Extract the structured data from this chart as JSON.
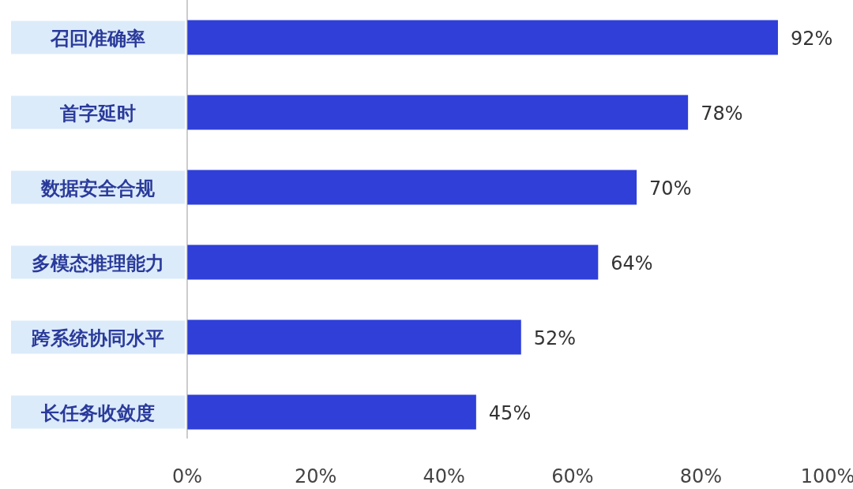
{
  "chart_data": {
    "type": "bar",
    "orientation": "horizontal",
    "categories": [
      "召回准确率",
      "首字延时",
      "数据安全合规",
      "多模态推理能力",
      "跨系统协同水平",
      "长任务收敛度"
    ],
    "values": [
      92,
      78,
      70,
      64,
      52,
      45
    ],
    "value_labels": [
      "92%",
      "78%",
      "70%",
      "64%",
      "52%",
      "45%"
    ],
    "color": "#2f3fd8",
    "xlim": [
      0,
      100
    ],
    "xticks": [
      {
        "value": 0,
        "label": "0%"
      },
      {
        "value": 20,
        "label": "20%"
      },
      {
        "value": 40,
        "label": "40%"
      },
      {
        "value": 60,
        "label": "60%"
      },
      {
        "value": 80,
        "label": "80%"
      },
      {
        "value": 100,
        "label": "100%"
      }
    ],
    "grid": false
  }
}
